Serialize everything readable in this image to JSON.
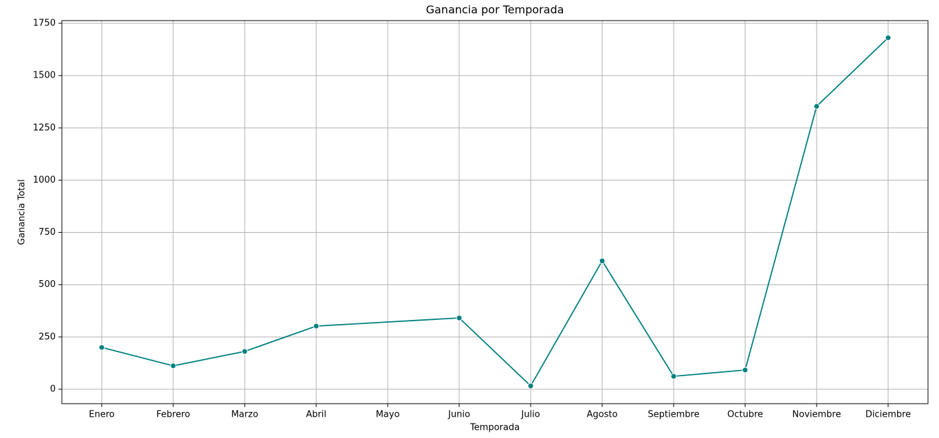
{
  "chart_data": {
    "type": "line",
    "title": "Ganancia por Temporada",
    "x_label": "Temporada",
    "y_label": "Ganancia Total",
    "categories": [
      "Enero",
      "Febrero",
      "Marzo",
      "Abril",
      "Mayo",
      "Junio",
      "Julio",
      "Agosto",
      "Septiembre",
      "Octubre",
      "Noviembre",
      "Diciembre"
    ],
    "series": [
      {
        "name": "Ganancia Total",
        "color": "#008080",
        "x": [
          "Enero",
          "Febrero",
          "Marzo",
          "Abril",
          "Junio",
          "Julio",
          "Agosto",
          "Septiembre",
          "Octubre",
          "Noviembre",
          "Diciembre"
        ],
        "values": [
          200,
          112,
          181,
          302,
          341,
          16,
          614,
          62,
          92,
          1353,
          1681
        ]
      }
    ],
    "ylim": [
      -69,
      1763
    ],
    "yticks": [
      0,
      250,
      500,
      750,
      1000,
      1250,
      1500,
      1750
    ],
    "grid": true
  }
}
